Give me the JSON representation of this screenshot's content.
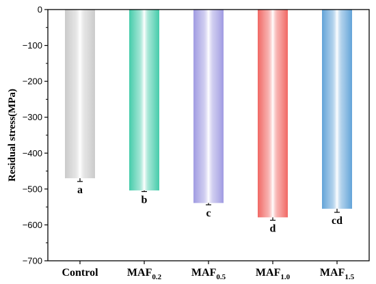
{
  "chart_data": {
    "type": "bar",
    "categories": [
      {
        "base": "Control",
        "sub": ""
      },
      {
        "base": "MAF",
        "sub": "0.2"
      },
      {
        "base": "MAF",
        "sub": "0.5"
      },
      {
        "base": "MAF",
        "sub": "1.0"
      },
      {
        "base": "MAF",
        "sub": "1.5"
      }
    ],
    "values": [
      -470,
      -504,
      -539,
      -579,
      -555
    ],
    "errors": [
      9,
      3,
      5,
      8,
      10
    ],
    "significance": [
      "a",
      "b",
      "c",
      "d",
      "cd"
    ],
    "colors": [
      "#c8c8c8",
      "#3cc9a6",
      "#9b96e0",
      "#f0605c",
      "#5a9fd6"
    ],
    "title": "",
    "xlabel": "",
    "ylabel": "Residual stress(MPa)",
    "ylim": [
      -700,
      0
    ],
    "yticks": [
      0,
      -100,
      -200,
      -300,
      -400,
      -500,
      -600,
      -700
    ],
    "grid": false,
    "legend": "none"
  }
}
